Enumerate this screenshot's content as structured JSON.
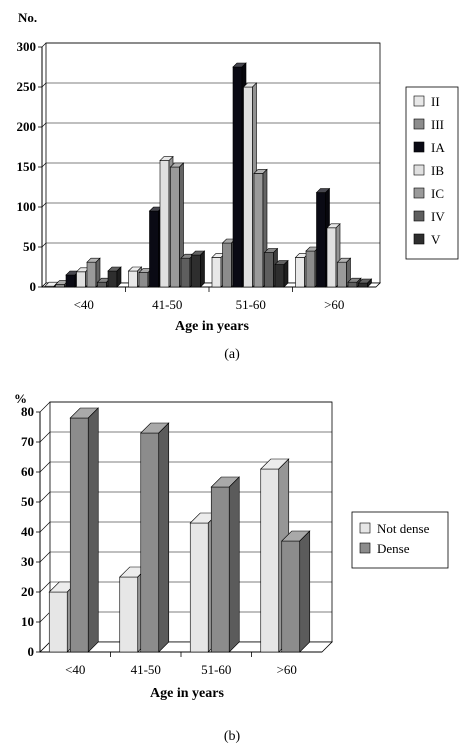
{
  "chart_data": [
    {
      "type": "bar",
      "title": "",
      "caption": "(a)",
      "ylabel": "No.",
      "xlabel": "Age in years",
      "ylim": [
        0,
        300
      ],
      "yticks": [
        0,
        50,
        100,
        150,
        200,
        250,
        300
      ],
      "categories": [
        "<40",
        "41-50",
        "51-60",
        ">60"
      ],
      "legend_position": "right",
      "grid": true,
      "series": [
        {
          "name": "II",
          "color": "#e8e8e8",
          "values": [
            1,
            20,
            37,
            37
          ]
        },
        {
          "name": "III",
          "color": "#8c8c8c",
          "values": [
            3,
            18,
            55,
            45
          ]
        },
        {
          "name": "IA",
          "color": "#0a0a14",
          "values": [
            15,
            95,
            275,
            118
          ]
        },
        {
          "name": "IB",
          "color": "#e0e0e0",
          "values": [
            19,
            158,
            250,
            74
          ]
        },
        {
          "name": "IC",
          "color": "#9a9a9a",
          "values": [
            31,
            150,
            142,
            31
          ]
        },
        {
          "name": "IV",
          "color": "#5e5e5e",
          "values": [
            6,
            36,
            43,
            6
          ]
        },
        {
          "name": "V",
          "color": "#2e2e2e",
          "values": [
            20,
            40,
            28,
            5
          ]
        }
      ]
    },
    {
      "type": "bar",
      "title": "",
      "caption": "(b)",
      "ylabel": "%",
      "xlabel": "Age in years",
      "ylim": [
        0,
        80
      ],
      "yticks": [
        0,
        10,
        20,
        30,
        40,
        50,
        60,
        70,
        80
      ],
      "categories": [
        "<40",
        "41-50",
        "51-60",
        ">60"
      ],
      "legend_position": "right",
      "grid": true,
      "series": [
        {
          "name": "Not dense",
          "color": "#e6e6e6",
          "values": [
            20,
            25,
            43,
            61
          ]
        },
        {
          "name": "Dense",
          "color": "#8c8c8c",
          "values": [
            78,
            73,
            55,
            37
          ]
        }
      ]
    }
  ]
}
